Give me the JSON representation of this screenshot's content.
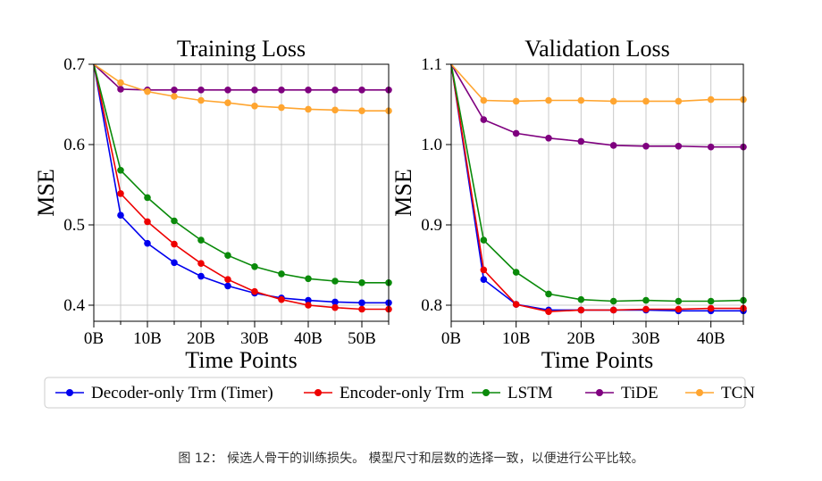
{
  "legend": {
    "entries": [
      {
        "label": "Decoder-only Trm (Timer)",
        "color": "#0000ee"
      },
      {
        "label": "Encoder-only Trm",
        "color": "#ee0000"
      },
      {
        "label": "LSTM",
        "color": "#0a8a0a"
      },
      {
        "label": "TiDE",
        "color": "#7f007f"
      },
      {
        "label": "TCN",
        "color": "#ffa530"
      }
    ]
  },
  "caption": "图 12： 候选人骨干的训练损失。 模型尺寸和层数的选择一致，以便进行公平比较。",
  "chart_data": [
    {
      "type": "line",
      "title": "Training Loss",
      "xlabel": "Time Points",
      "ylabel": "MSE",
      "xlim": [
        0,
        55
      ],
      "ylim": [
        0.38,
        0.7
      ],
      "xticks": [
        0,
        10,
        20,
        30,
        40,
        50
      ],
      "xtick_labels": [
        "0B",
        "10B",
        "20B",
        "30B",
        "40B",
        "50B"
      ],
      "yticks": [
        0.4,
        0.5,
        0.6,
        0.7
      ],
      "ytick_labels": [
        "0.4",
        "0.5",
        "0.6",
        "0.7"
      ],
      "grid": true,
      "x": [
        0,
        5,
        10,
        15,
        20,
        25,
        30,
        35,
        40,
        45,
        50,
        55
      ],
      "series": [
        {
          "name": "Decoder-only Trm (Timer)",
          "color": "#0000ee",
          "values": [
            0.7,
            0.512,
            0.477,
            0.453,
            0.436,
            0.424,
            0.415,
            0.409,
            0.406,
            0.404,
            0.403,
            0.403
          ]
        },
        {
          "name": "Encoder-only Trm",
          "color": "#ee0000",
          "values": [
            0.7,
            0.539,
            0.504,
            0.476,
            0.452,
            0.432,
            0.417,
            0.407,
            0.4,
            0.397,
            0.395,
            0.395
          ]
        },
        {
          "name": "LSTM",
          "color": "#0a8a0a",
          "values": [
            0.7,
            0.568,
            0.534,
            0.505,
            0.481,
            0.462,
            0.448,
            0.439,
            0.433,
            0.43,
            0.428,
            0.428
          ]
        },
        {
          "name": "TiDE",
          "color": "#7f007f",
          "values": [
            0.7,
            0.669,
            0.668,
            0.668,
            0.668,
            0.668,
            0.668,
            0.668,
            0.668,
            0.668,
            0.668,
            0.668
          ]
        },
        {
          "name": "TCN",
          "color": "#ffa530",
          "values": [
            0.7,
            0.677,
            0.666,
            0.66,
            0.655,
            0.652,
            0.648,
            0.646,
            0.644,
            0.643,
            0.642,
            0.642
          ]
        }
      ]
    },
    {
      "type": "line",
      "title": "Validation Loss",
      "xlabel": "Time Points",
      "ylabel": "MSE",
      "xlim": [
        0,
        45
      ],
      "ylim": [
        0.78,
        1.1
      ],
      "xticks": [
        0,
        10,
        20,
        30,
        40
      ],
      "xtick_labels": [
        "0B",
        "10B",
        "20B",
        "30B",
        "40B"
      ],
      "yticks": [
        0.8,
        0.9,
        1.0,
        1.1
      ],
      "ytick_labels": [
        "0.8",
        "0.9",
        "1.0",
        "1.1"
      ],
      "grid": true,
      "x": [
        0,
        5,
        10,
        15,
        20,
        25,
        30,
        35,
        40,
        45
      ],
      "series": [
        {
          "name": "Decoder-only Trm (Timer)",
          "color": "#0000ee",
          "values": [
            1.1,
            0.832,
            0.801,
            0.794,
            0.794,
            0.794,
            0.794,
            0.793,
            0.793,
            0.793
          ]
        },
        {
          "name": "Encoder-only Trm",
          "color": "#ee0000",
          "values": [
            1.1,
            0.844,
            0.801,
            0.792,
            0.794,
            0.794,
            0.795,
            0.795,
            0.796,
            0.796
          ]
        },
        {
          "name": "LSTM",
          "color": "#0a8a0a",
          "values": [
            1.1,
            0.881,
            0.841,
            0.814,
            0.807,
            0.805,
            0.806,
            0.805,
            0.805,
            0.806
          ]
        },
        {
          "name": "TiDE",
          "color": "#7f007f",
          "values": [
            1.1,
            1.031,
            1.014,
            1.008,
            1.004,
            0.999,
            0.998,
            0.998,
            0.997,
            0.997
          ]
        },
        {
          "name": "TCN",
          "color": "#ffa530",
          "values": [
            1.1,
            1.055,
            1.054,
            1.055,
            1.055,
            1.054,
            1.054,
            1.054,
            1.056,
            1.056
          ]
        }
      ]
    }
  ]
}
